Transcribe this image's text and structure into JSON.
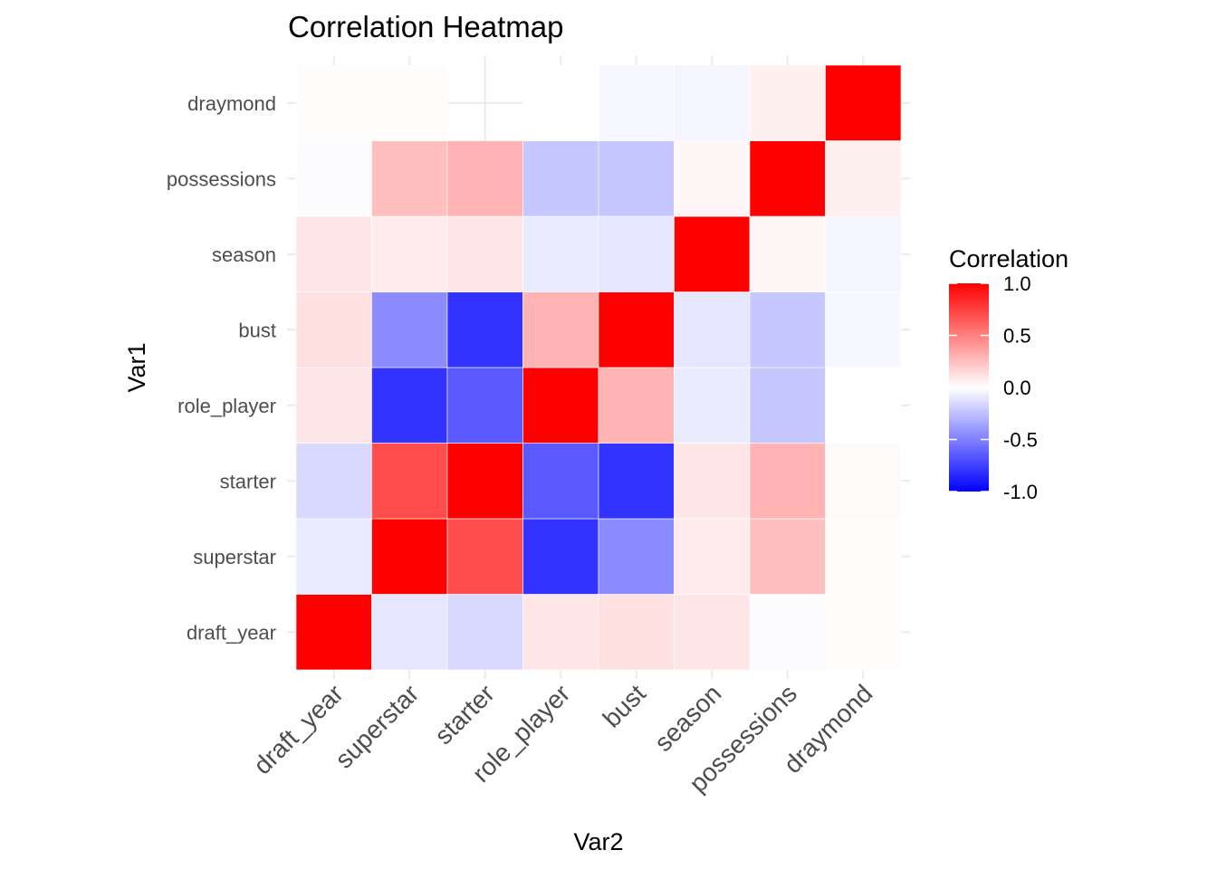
{
  "chart_data": {
    "type": "heatmap",
    "title": "Correlation Heatmap",
    "xlabel": "Var2",
    "ylabel": "Var1",
    "x_categories": [
      "draft_year",
      "superstar",
      "starter",
      "role_player",
      "bust",
      "season",
      "possessions",
      "draymond"
    ],
    "y_categories": [
      "draft_year",
      "superstar",
      "starter",
      "role_player",
      "bust",
      "season",
      "possessions",
      "draymond"
    ],
    "values": [
      [
        1.0,
        -0.1,
        -0.15,
        0.1,
        0.12,
        0.1,
        -0.01,
        0.01
      ],
      [
        -0.08,
        1.0,
        0.7,
        -0.8,
        -0.45,
        0.08,
        0.25,
        0.01
      ],
      [
        -0.15,
        0.7,
        1.0,
        -0.65,
        -0.8,
        0.1,
        0.3,
        0.02
      ],
      [
        0.1,
        -0.8,
        -0.65,
        1.0,
        0.3,
        -0.08,
        -0.22,
        0.0
      ],
      [
        0.12,
        -0.45,
        -0.8,
        0.3,
        1.0,
        -0.1,
        -0.22,
        -0.03
      ],
      [
        0.1,
        0.08,
        0.1,
        -0.08,
        -0.1,
        1.0,
        0.03,
        -0.04
      ],
      [
        -0.01,
        0.25,
        0.3,
        -0.22,
        -0.22,
        0.03,
        1.0,
        0.06
      ],
      [
        0.01,
        0.01,
        0.02,
        0.0,
        -0.03,
        -0.04,
        0.06,
        1.0
      ]
    ],
    "missing_cells": [
      [
        7,
        2
      ]
    ],
    "color_scale": {
      "low": "#0000ff",
      "mid": "#ffffff",
      "high": "#ff0000",
      "limits": [
        -1,
        1
      ]
    },
    "grid": false,
    "legend": {
      "title": "Correlation",
      "position": "right",
      "ticks": [
        1.0,
        0.5,
        0.0,
        -0.5,
        -1.0
      ],
      "tick_labels": [
        "1.0",
        "0.5",
        "0.0",
        "-0.5",
        "-1.0"
      ]
    }
  }
}
